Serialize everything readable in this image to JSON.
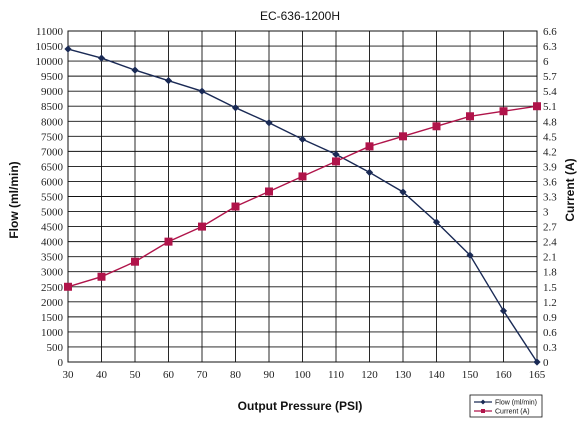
{
  "chart_data": {
    "type": "line",
    "title": "EC-636-1200H",
    "xlabel": "Output Pressure (PSI)",
    "ylabel_left": "Flow (ml/min)",
    "ylabel_right": "Current (A)",
    "x": [
      30,
      40,
      50,
      60,
      70,
      80,
      90,
      100,
      110,
      120,
      130,
      140,
      150,
      160,
      165
    ],
    "x_ticks": [
      "30",
      "40",
      "50",
      "60",
      "70",
      "80",
      "90",
      "100",
      "110",
      "120",
      "130",
      "140",
      "150",
      "160",
      "165"
    ],
    "ylim_left": [
      0,
      11000
    ],
    "y_ticks_left": [
      "0",
      "500",
      "1000",
      "1500",
      "2000",
      "2500",
      "3000",
      "3500",
      "4000",
      "4500",
      "5000",
      "5500",
      "6000",
      "6500",
      "7000",
      "7500",
      "8000",
      "8500",
      "9000",
      "9500",
      "10000",
      "10500",
      "11000"
    ],
    "ylim_right": [
      0,
      6.6
    ],
    "y_ticks_right": [
      "0",
      "0.3",
      "0.6",
      "0.9",
      "1.2",
      "1.5",
      "1.8",
      "2.1",
      "2.4",
      "2.7",
      "3",
      "3.3",
      "3.6",
      "3.9",
      "4.2",
      "4.5",
      "4.8",
      "5.1",
      "5.4",
      "5.7",
      "6",
      "6.3",
      "6.6"
    ],
    "grid": true,
    "legend_position": "bottom-right",
    "series": [
      {
        "name": "Flow (ml/min)",
        "axis": "left",
        "color": "#1a2a55",
        "marker": "diamond",
        "values": [
          10400,
          10100,
          9700,
          9350,
          9000,
          8450,
          7950,
          7400,
          6900,
          6300,
          5650,
          4650,
          3550,
          1700,
          0
        ]
      },
      {
        "name": "Current (A)",
        "axis": "right",
        "color": "#b0144a",
        "marker": "square",
        "values": [
          1.5,
          1.7,
          2.0,
          2.4,
          2.7,
          3.1,
          3.4,
          3.7,
          4.0,
          4.3,
          4.5,
          4.7,
          4.9,
          5.0,
          5.1
        ]
      }
    ]
  }
}
